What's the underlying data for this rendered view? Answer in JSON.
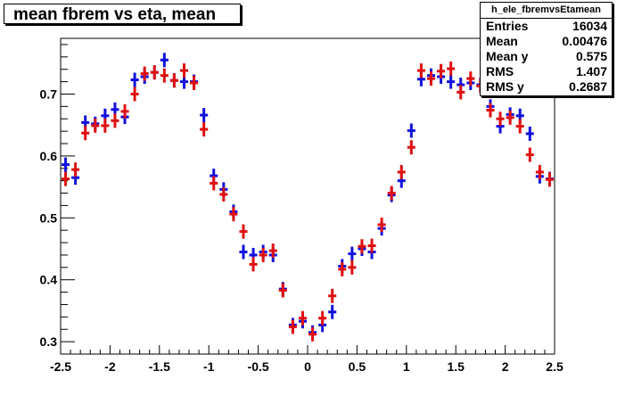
{
  "title": "mean fbrem vs eta, mean",
  "stats": {
    "name": "h_ele_fbremvsEtamean",
    "rows": [
      {
        "label": "Entries",
        "value": "16034"
      },
      {
        "label": "Mean",
        "value": "0.00476"
      },
      {
        "label": "Mean y",
        "value": "0.575"
      },
      {
        "label": "RMS",
        "value": "1.407"
      },
      {
        "label": "RMS y",
        "value": "0.2687"
      }
    ]
  },
  "chart_data": {
    "type": "scatter",
    "title": "mean fbrem vs eta, mean",
    "xlabel": "",
    "ylabel": "",
    "xlim": [
      -2.5,
      2.5
    ],
    "ylim": [
      0.28,
      0.79
    ],
    "x_ticks": [
      "-2.5",
      "-2",
      "-1.5",
      "-1",
      "-0.5",
      "0",
      "0.5",
      "1",
      "1.5",
      "2",
      "2.5"
    ],
    "y_ticks": [
      "0.3",
      "0.4",
      "0.5",
      "0.6",
      "0.7"
    ],
    "grid": false,
    "bin_width": 0.1,
    "series": [
      {
        "color": "#1010dd",
        "x": [
          -2.45,
          -2.35,
          -2.25,
          -2.15,
          -2.05,
          -1.95,
          -1.85,
          -1.75,
          -1.65,
          -1.55,
          -1.45,
          -1.35,
          -1.25,
          -1.15,
          -1.05,
          -0.95,
          -0.85,
          -0.75,
          -0.65,
          -0.55,
          -0.45,
          -0.35,
          -0.25,
          -0.15,
          -0.05,
          0.05,
          0.15,
          0.25,
          0.35,
          0.45,
          0.55,
          0.65,
          0.75,
          0.85,
          0.95,
          1.05,
          1.15,
          1.25,
          1.35,
          1.45,
          1.55,
          1.65,
          1.75,
          1.85,
          1.95,
          2.05,
          2.15,
          2.25,
          2.35,
          2.45
        ],
        "y": [
          0.586,
          0.565,
          0.654,
          0.652,
          0.665,
          0.675,
          0.663,
          0.723,
          0.728,
          0.735,
          0.755,
          0.722,
          0.72,
          0.72,
          0.666,
          0.568,
          0.546,
          0.51,
          0.445,
          0.44,
          0.445,
          0.44,
          0.385,
          0.327,
          0.333,
          0.315,
          0.327,
          0.348,
          0.422,
          0.442,
          0.45,
          0.445,
          0.483,
          0.537,
          0.56,
          0.641,
          0.724,
          0.73,
          0.728,
          0.72,
          0.715,
          0.718,
          0.715,
          0.68,
          0.648,
          0.667,
          0.665,
          0.636,
          0.567,
          0.563
        ]
      },
      {
        "color": "#e01010",
        "x": [
          -2.45,
          -2.35,
          -2.25,
          -2.15,
          -2.05,
          -1.95,
          -1.85,
          -1.75,
          -1.65,
          -1.55,
          -1.45,
          -1.35,
          -1.25,
          -1.15,
          -1.05,
          -0.95,
          -0.85,
          -0.75,
          -0.65,
          -0.55,
          -0.45,
          -0.35,
          -0.25,
          -0.15,
          -0.05,
          0.05,
          0.15,
          0.25,
          0.35,
          0.45,
          0.55,
          0.65,
          0.75,
          0.85,
          0.95,
          1.05,
          1.15,
          1.25,
          1.35,
          1.45,
          1.55,
          1.65,
          1.75,
          1.85,
          1.95,
          2.05,
          2.15,
          2.25,
          2.35,
          2.45
        ],
        "y": [
          0.563,
          0.578,
          0.637,
          0.649,
          0.649,
          0.657,
          0.672,
          0.7,
          0.733,
          0.735,
          0.73,
          0.722,
          0.738,
          0.718,
          0.643,
          0.556,
          0.538,
          0.506,
          0.478,
          0.425,
          0.44,
          0.447,
          0.383,
          0.324,
          0.338,
          0.312,
          0.338,
          0.374,
          0.417,
          0.42,
          0.454,
          0.455,
          0.489,
          0.54,
          0.574,
          0.614,
          0.738,
          0.725,
          0.737,
          0.741,
          0.703,
          0.725,
          0.713,
          0.674,
          0.66,
          0.662,
          0.648,
          0.602,
          0.574,
          0.562
        ]
      }
    ]
  }
}
